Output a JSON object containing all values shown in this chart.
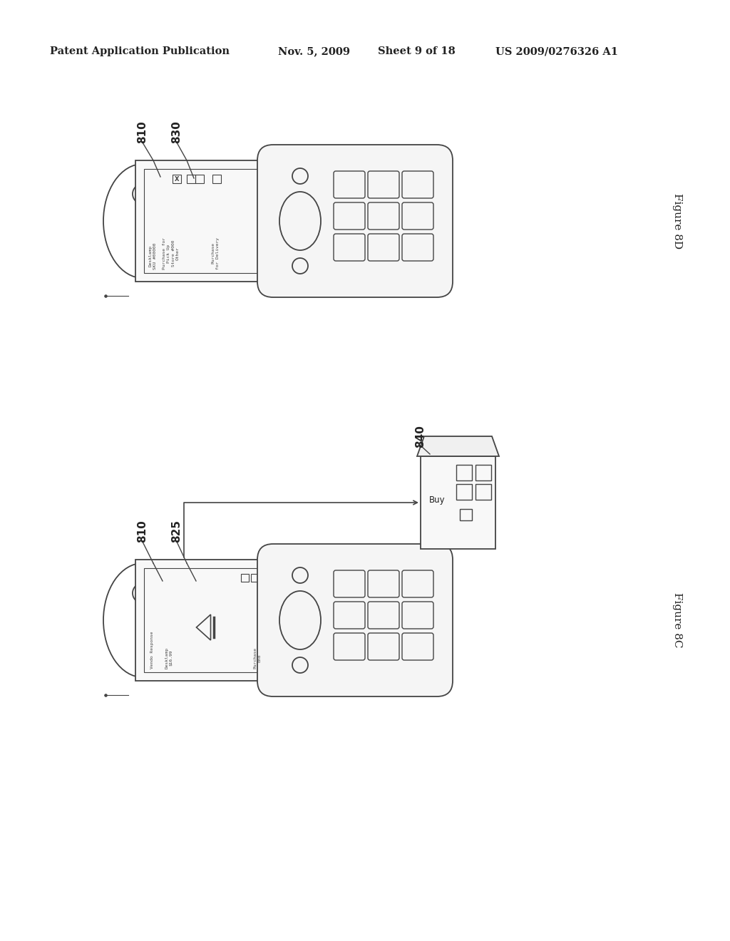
{
  "bg_color": "#ffffff",
  "line_color": "#444444",
  "text_color": "#222222",
  "header_text": "Patent Application Publication",
  "header_date": "Nov. 5, 2009",
  "header_sheet": "Sheet 9 of 18",
  "header_patent": "US 2009/0276326 A1",
  "fig_top_label": "Figure 8D",
  "fig_bot_label": "Figure 8C",
  "label_810_top": "810",
  "label_830": "830",
  "label_810_bot": "810",
  "label_825": "825",
  "label_840": "840",
  "screen_top_line1": "Desklamp",
  "screen_top_line2": "SKU #00000",
  "screen_top_line3": "Purchase for",
  "screen_top_line4": "Pick Up",
  "screen_top_line5": "Store #000",
  "screen_top_line6": "Other",
  "screen_top_line7": "Purchase",
  "screen_top_line8": "for Delivery",
  "screen_bot_line1": "Vendo Response",
  "screen_bot_line2": "Desklamp",
  "screen_bot_line3": "$16.99",
  "screen_bot_line4": "Purchase",
  "screen_bot_line5": "End",
  "buy_label": "Buy"
}
